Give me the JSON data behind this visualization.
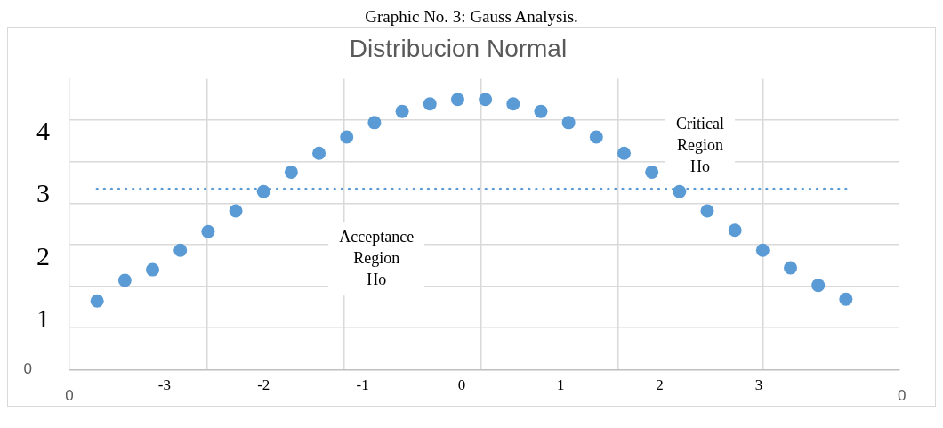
{
  "chart_data": {
    "type": "scatter",
    "title": "Graphic No. 3: Gauss Analysis.",
    "subtitle": "Distribucion Normal",
    "x": [
      -3.68,
      -3.4,
      -3.12,
      -2.84,
      -2.56,
      -2.28,
      -2.0,
      -1.72,
      -1.44,
      -1.16,
      -0.88,
      -0.6,
      -0.32,
      -0.04,
      0.24,
      0.52,
      0.8,
      1.08,
      1.36,
      1.64,
      1.92,
      2.2,
      2.48,
      2.76,
      3.04,
      3.32,
      3.6,
      3.88
    ],
    "series": [
      {
        "color": "#5b9bd5",
        "marker": "circle",
        "values": [
          1.31,
          1.64,
          1.81,
          2.12,
          2.42,
          2.75,
          3.06,
          3.37,
          3.67,
          3.93,
          4.16,
          4.34,
          4.46,
          4.53,
          4.53,
          4.46,
          4.34,
          4.16,
          3.93,
          3.67,
          3.37,
          3.06,
          2.75,
          2.44,
          2.12,
          1.84,
          1.56,
          1.34
        ]
      },
      {
        "type": "line",
        "color": "#5b9bd5",
        "marker": "none",
        "line_style": "dotted",
        "x": [
          -3.68,
          3.88
        ],
        "values": [
          3.1,
          3.1
        ]
      }
    ],
    "xlim": [
      -3.96,
      4.42
    ],
    "xticks": [
      -3,
      {
        "value": -2.57,
        "label": null
      },
      -2,
      {
        "value": -1.19,
        "label": null
      },
      -1,
      0,
      {
        "value": 0.2,
        "label": null
      },
      1,
      {
        "value": 1.58,
        "label": null
      },
      2,
      3,
      {
        "value": 3.04,
        "label": null
      }
    ],
    "ylim": [
      0.21,
      4.86
    ],
    "yticks": [
      {
        "value": 0.89,
        "label": null
      },
      1,
      {
        "value": 1.54,
        "label": null
      },
      2,
      {
        "value": 2.21,
        "label": null
      },
      {
        "value": 2.87,
        "label": null
      },
      3,
      {
        "value": 3.53,
        "label": null
      },
      4,
      {
        "value": 4.2,
        "label": null
      }
    ],
    "grid": true,
    "annotations": [
      "Acceptance Region Ho",
      "Critical Region Ho",
      "0",
      "0",
      "0"
    ]
  }
}
